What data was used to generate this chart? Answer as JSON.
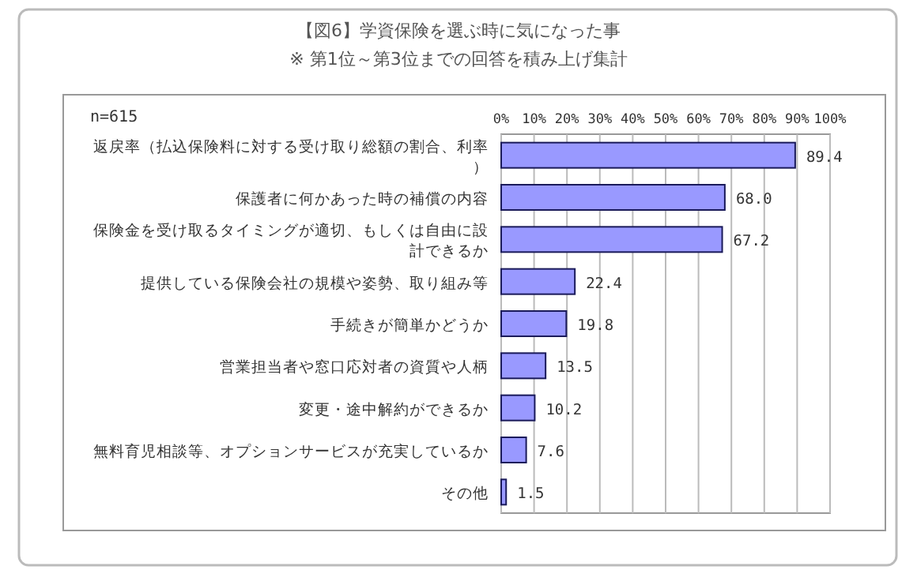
{
  "chart_data": {
    "type": "bar",
    "orientation": "horizontal",
    "title": "【図6】学資保険を選ぶ時に気になった事",
    "subtitle": "※ 第1位～第3位までの回答を積み上げ集計",
    "annotations": [
      "n=615"
    ],
    "categories": [
      "返戻率（払込保険料に対する受け取り総額の割合、利率）",
      "保護者に何かあった時の補償の内容",
      "保険金を受け取るタイミングが適切、もしくは自由に設計できるか",
      "提供している保険会社の規模や姿勢、取り組み等",
      "手続きが簡単かどうか",
      "営業担当者や窓口応対者の資質や人柄",
      "変更・途中解約ができるか",
      "無料育児相談等、オプションサービスが充実しているか",
      "その他"
    ],
    "series": [
      {
        "color": "#9999ff",
        "values": [
          89.4,
          68.0,
          67.2,
          22.4,
          19.8,
          13.5,
          10.2,
          7.6,
          1.5
        ]
      }
    ],
    "value_labels": [
      "89.4",
      "68.0",
      "67.2",
      "22.4",
      "19.8",
      "13.5",
      "10.2",
      "7.6",
      "1.5"
    ],
    "xlim": [
      0,
      100
    ],
    "xticks": [
      {
        "value": 0,
        "label": "0%"
      },
      {
        "value": 10,
        "label": "10%"
      },
      {
        "value": 20,
        "label": "20%"
      },
      {
        "value": 30,
        "label": "30%"
      },
      {
        "value": 40,
        "label": "40%"
      },
      {
        "value": 50,
        "label": "50%"
      },
      {
        "value": 60,
        "label": "60%"
      },
      {
        "value": 70,
        "label": "70%"
      },
      {
        "value": 80,
        "label": "80%"
      },
      {
        "value": 90,
        "label": "90%"
      },
      {
        "value": 100,
        "label": "100%"
      }
    ],
    "grid": "x"
  }
}
